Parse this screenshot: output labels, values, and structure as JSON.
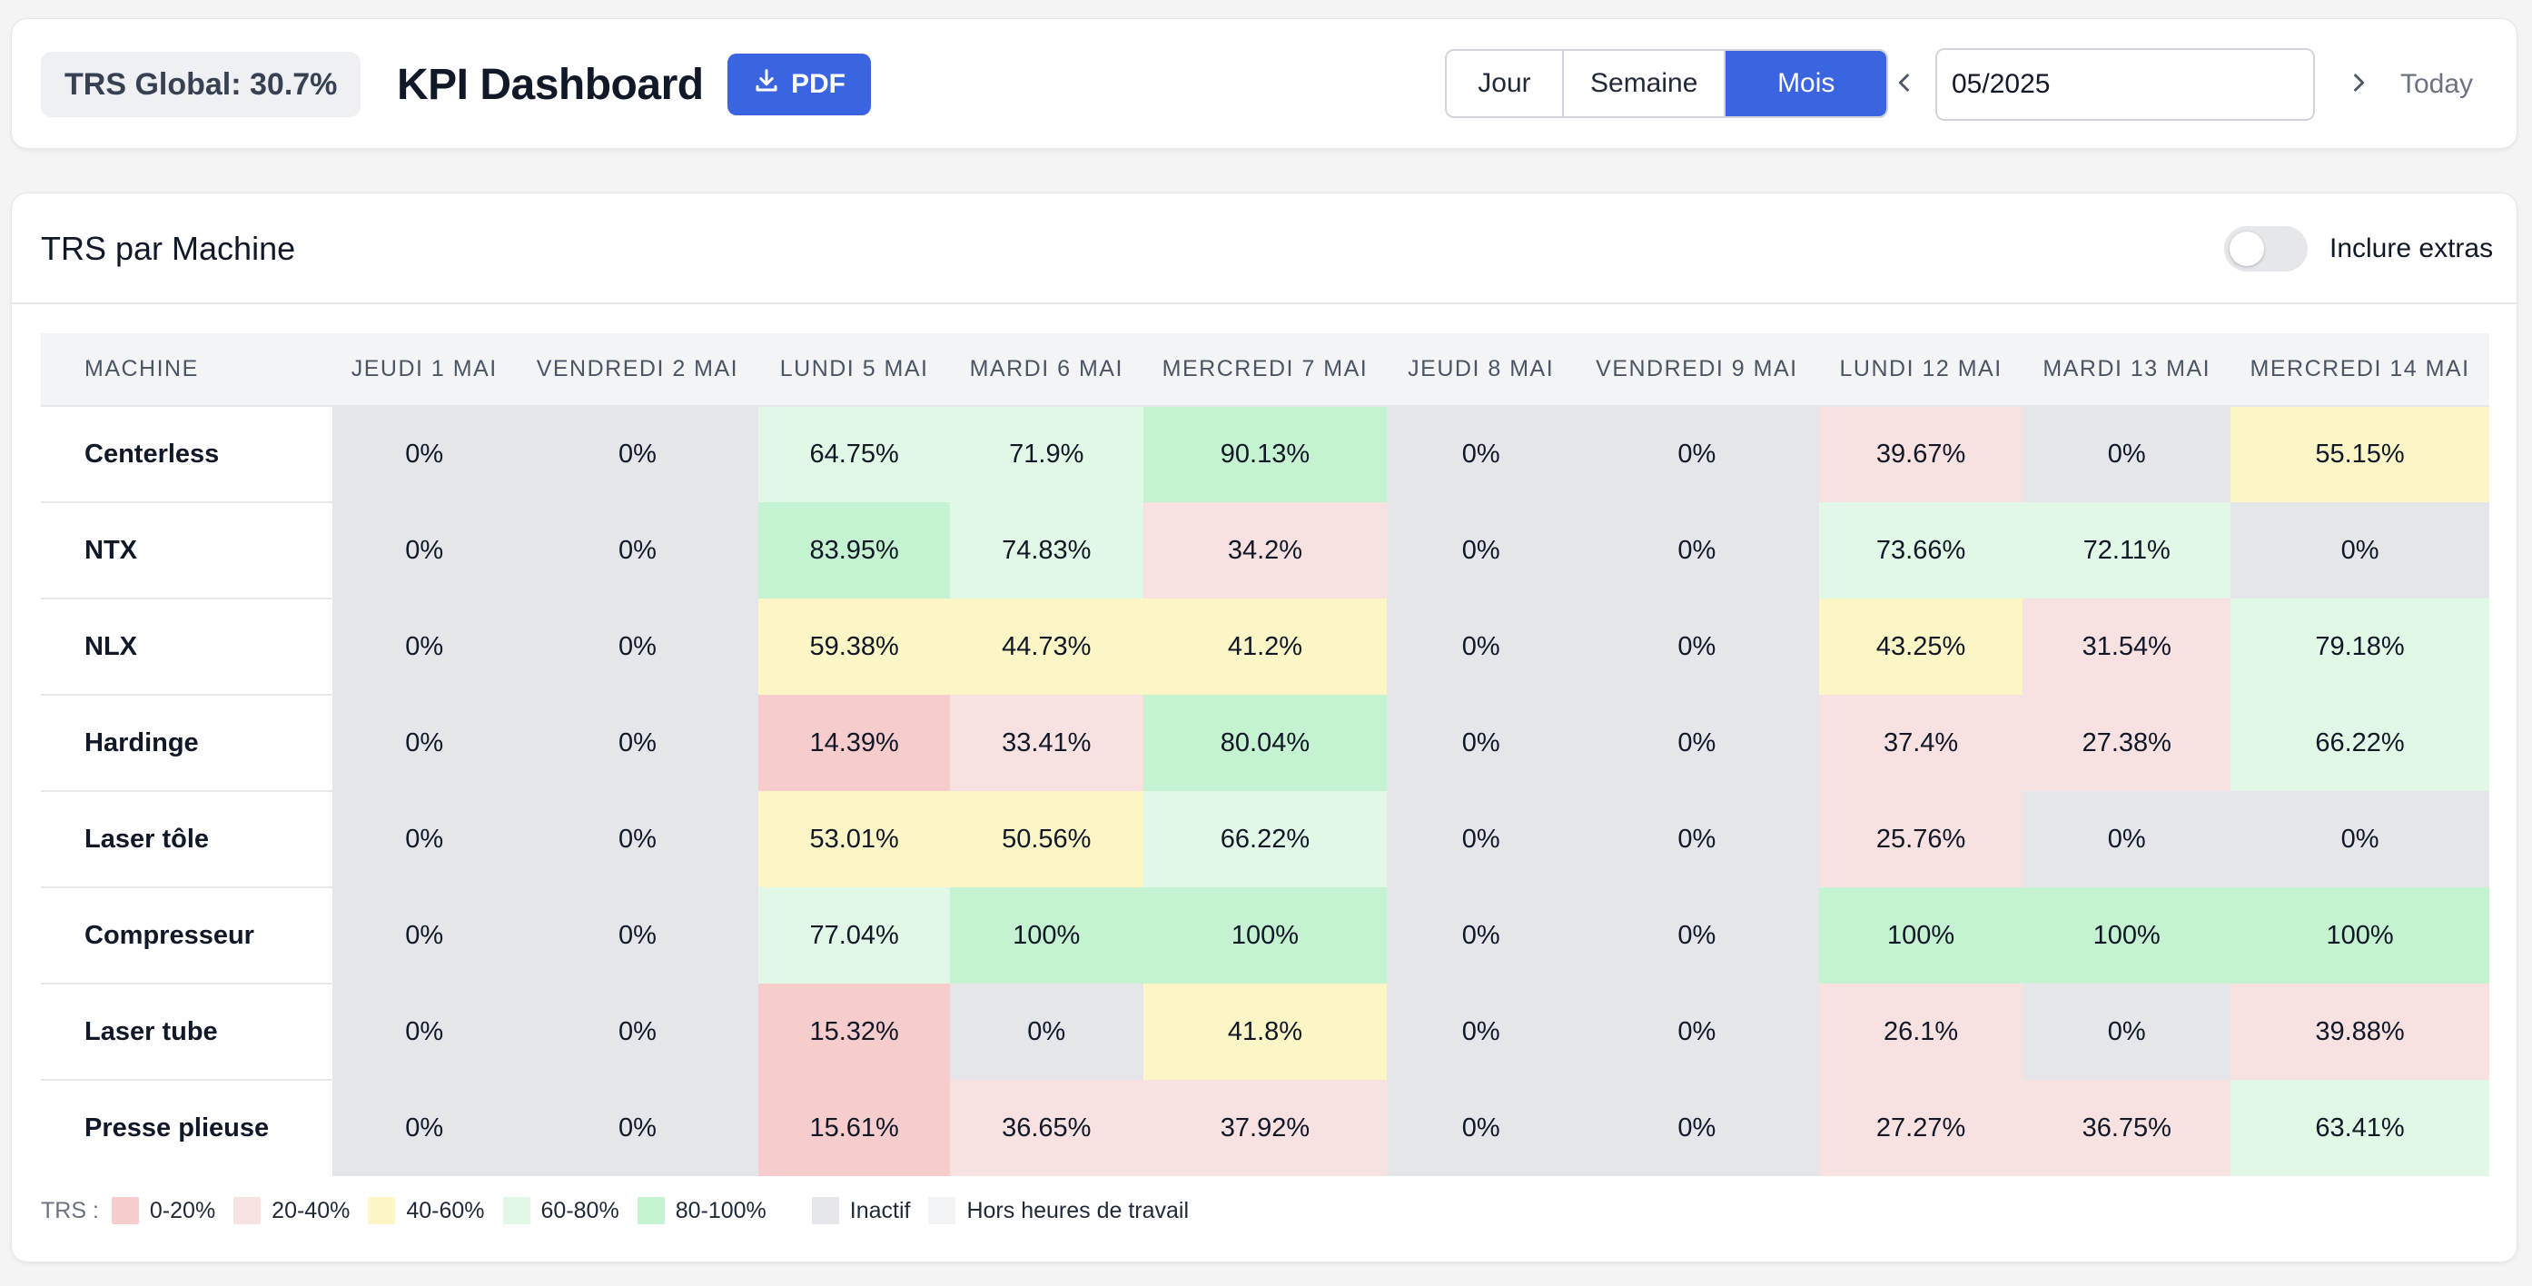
{
  "header": {
    "trs_global": "TRS Global: 30.7%",
    "title": "KPI Dashboard",
    "pdf_label": "PDF",
    "view_modes": [
      "Jour",
      "Semaine",
      "Mois"
    ],
    "active_view": "Mois",
    "period_value": "05/2025",
    "today_label": "Today"
  },
  "section": {
    "title": "TRS par Machine",
    "toggle_label": "Inclure extras",
    "toggle_on": false
  },
  "table": {
    "machine_header": "Machine",
    "days": [
      "Jeudi 1 mai",
      "Vendredi 2 mai",
      "Lundi 5 mai",
      "Mardi 6 mai",
      "Mercredi 7 mai",
      "Jeudi 8 mai",
      "Vendredi 9 mai",
      "Lundi 12 mai",
      "Mardi 13 mai",
      "Mercredi 14 mai"
    ],
    "inactive_day_indices": [
      0,
      1,
      5,
      6
    ],
    "rows": [
      {
        "machine": "Centerless",
        "values": [
          "0%",
          "0%",
          "64.75%",
          "71.9%",
          "90.13%",
          "0%",
          "0%",
          "39.67%",
          "0%",
          "55.15%"
        ]
      },
      {
        "machine": "NTX",
        "values": [
          "0%",
          "0%",
          "83.95%",
          "74.83%",
          "34.2%",
          "0%",
          "0%",
          "73.66%",
          "72.11%",
          "0%"
        ]
      },
      {
        "machine": "NLX",
        "values": [
          "0%",
          "0%",
          "59.38%",
          "44.73%",
          "41.2%",
          "0%",
          "0%",
          "43.25%",
          "31.54%",
          "79.18%"
        ]
      },
      {
        "machine": "Hardinge",
        "values": [
          "0%",
          "0%",
          "14.39%",
          "33.41%",
          "80.04%",
          "0%",
          "0%",
          "37.4%",
          "27.38%",
          "66.22%"
        ]
      },
      {
        "machine": "Laser tôle",
        "values": [
          "0%",
          "0%",
          "53.01%",
          "50.56%",
          "66.22%",
          "0%",
          "0%",
          "25.76%",
          "0%",
          "0%"
        ]
      },
      {
        "machine": "Compresseur",
        "values": [
          "0%",
          "0%",
          "77.04%",
          "100%",
          "100%",
          "0%",
          "0%",
          "100%",
          "100%",
          "100%"
        ]
      },
      {
        "machine": "Laser tube",
        "values": [
          "0%",
          "0%",
          "15.32%",
          "0%",
          "41.8%",
          "0%",
          "0%",
          "26.1%",
          "0%",
          "39.88%"
        ]
      },
      {
        "machine": "Presse plieuse",
        "values": [
          "0%",
          "0%",
          "15.61%",
          "36.65%",
          "37.92%",
          "0%",
          "0%",
          "27.27%",
          "36.75%",
          "63.41%"
        ]
      }
    ]
  },
  "legend": {
    "title": "TRS :",
    "ranges": [
      {
        "label": "0-20%",
        "color": "#f6cccc"
      },
      {
        "label": "20-40%",
        "color": "#f8e1e1"
      },
      {
        "label": "40-60%",
        "color": "#fcf6c6"
      },
      {
        "label": "60-80%",
        "color": "#e2f8e6"
      },
      {
        "label": "80-100%",
        "color": "#c5f2d0"
      }
    ],
    "inactive": {
      "label": "Inactif",
      "color": "#e5e6ea"
    },
    "off_hours": {
      "label": "Hors heures de travail",
      "color": "#f2f3f5"
    }
  },
  "colors": {
    "accent": "#3b65e0"
  }
}
